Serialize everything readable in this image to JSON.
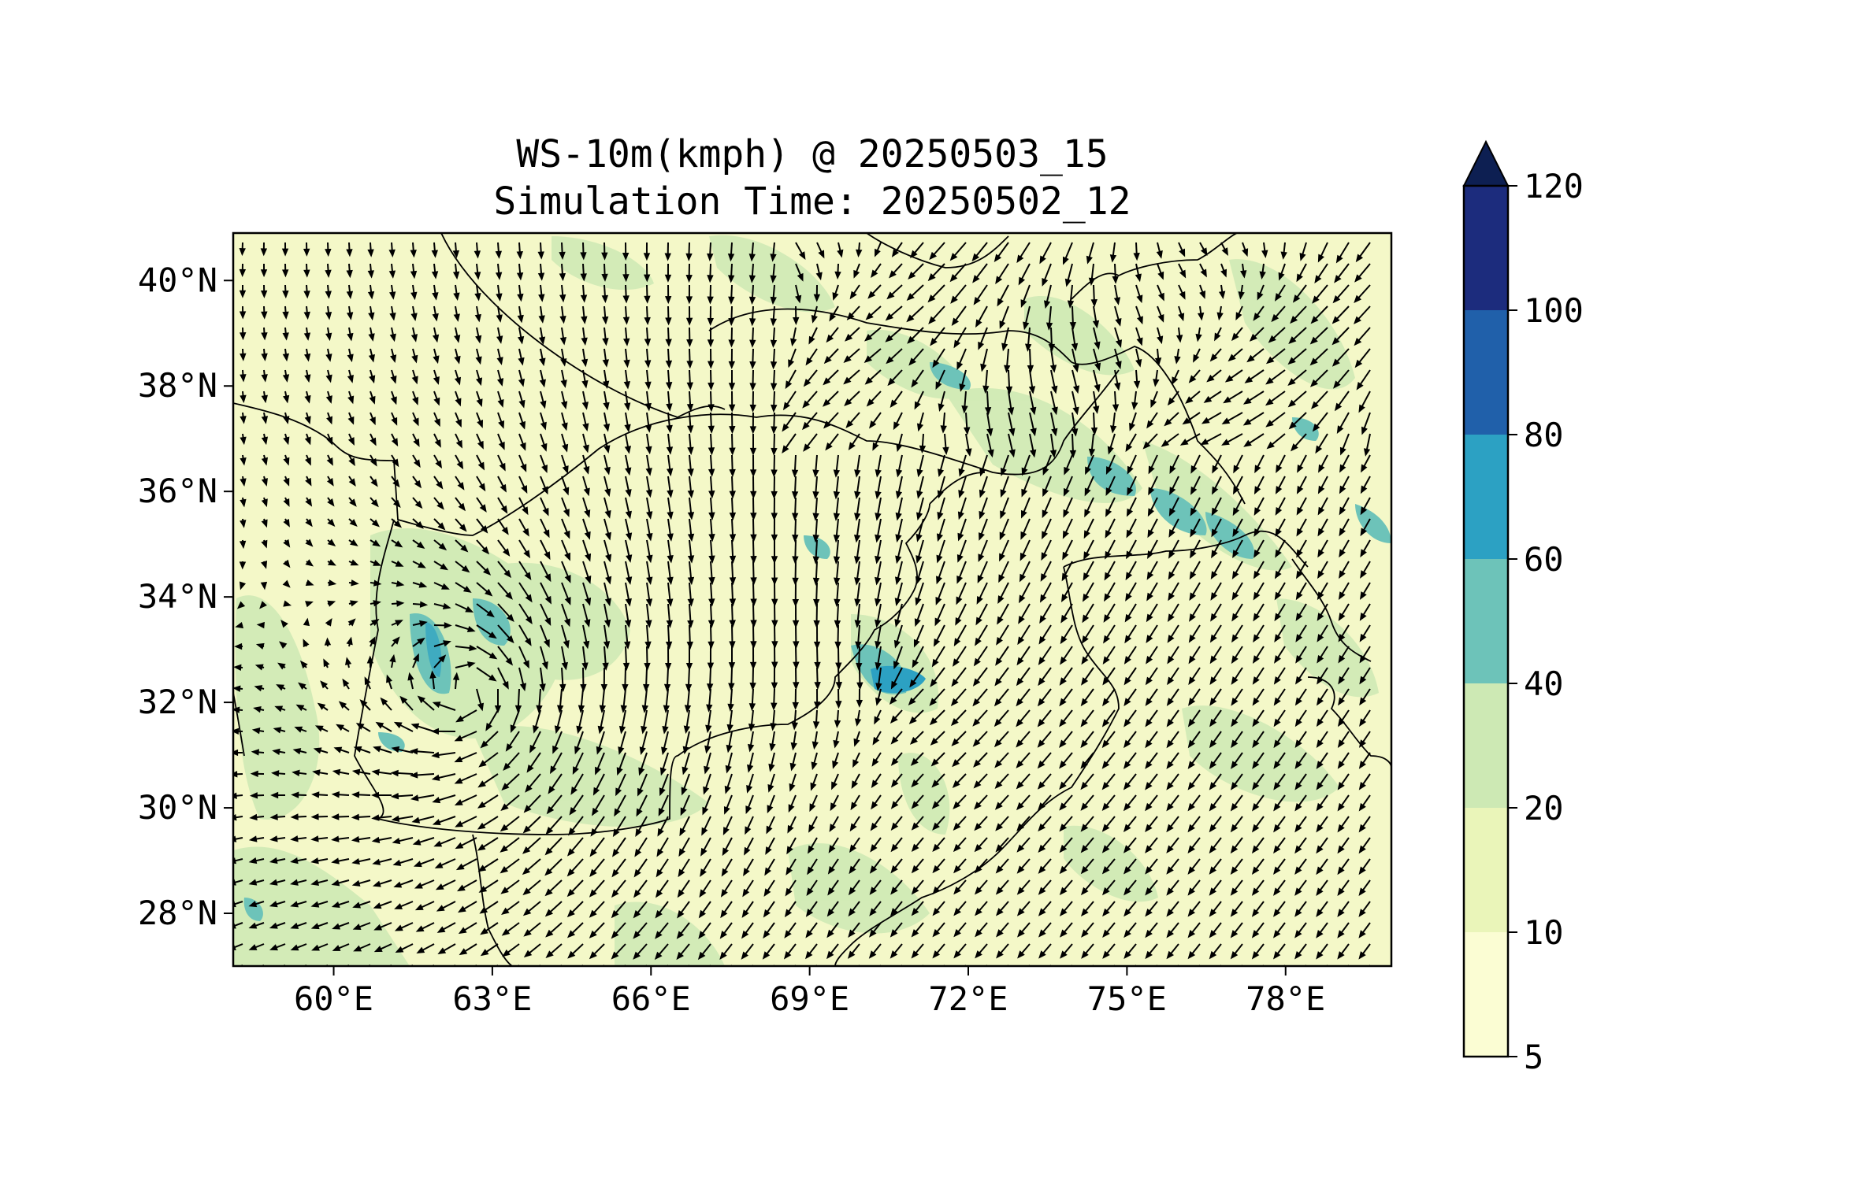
{
  "map": {
    "title": "WS-10m(kmph) @ 20250503_15",
    "subtitle": "Simulation Time: 20250502_12",
    "lon_ticks": [
      "60°E",
      "63°E",
      "66°E",
      "69°E",
      "72°E",
      "75°E",
      "78°E"
    ],
    "lat_ticks": [
      "40°N",
      "38°N",
      "36°N",
      "34°N",
      "32°N",
      "30°N",
      "28°N"
    ],
    "lon_values": [
      60,
      63,
      66,
      69,
      72,
      75,
      78
    ],
    "lat_values": [
      40,
      38,
      36,
      34,
      32,
      30,
      28
    ],
    "lon_range": [
      58.1,
      80.0
    ],
    "lat_range": [
      27.0,
      40.9
    ],
    "field": "10 m wind speed with wind vectors",
    "land_color": "#f4f8c8"
  },
  "colorbar": {
    "levels": [
      "5",
      "10",
      "20",
      "40",
      "60",
      "80",
      "100",
      "120"
    ],
    "level_values": [
      5,
      10,
      20,
      40,
      60,
      80,
      100,
      120
    ],
    "colors": [
      "#fbfdd3",
      "#eaf5b9",
      "#cde9b4",
      "#6dc3b9",
      "#2ca1c3",
      "#2060aa",
      "#1c2c7d"
    ],
    "extend_color": "#0d1f52",
    "extend": "max"
  }
}
